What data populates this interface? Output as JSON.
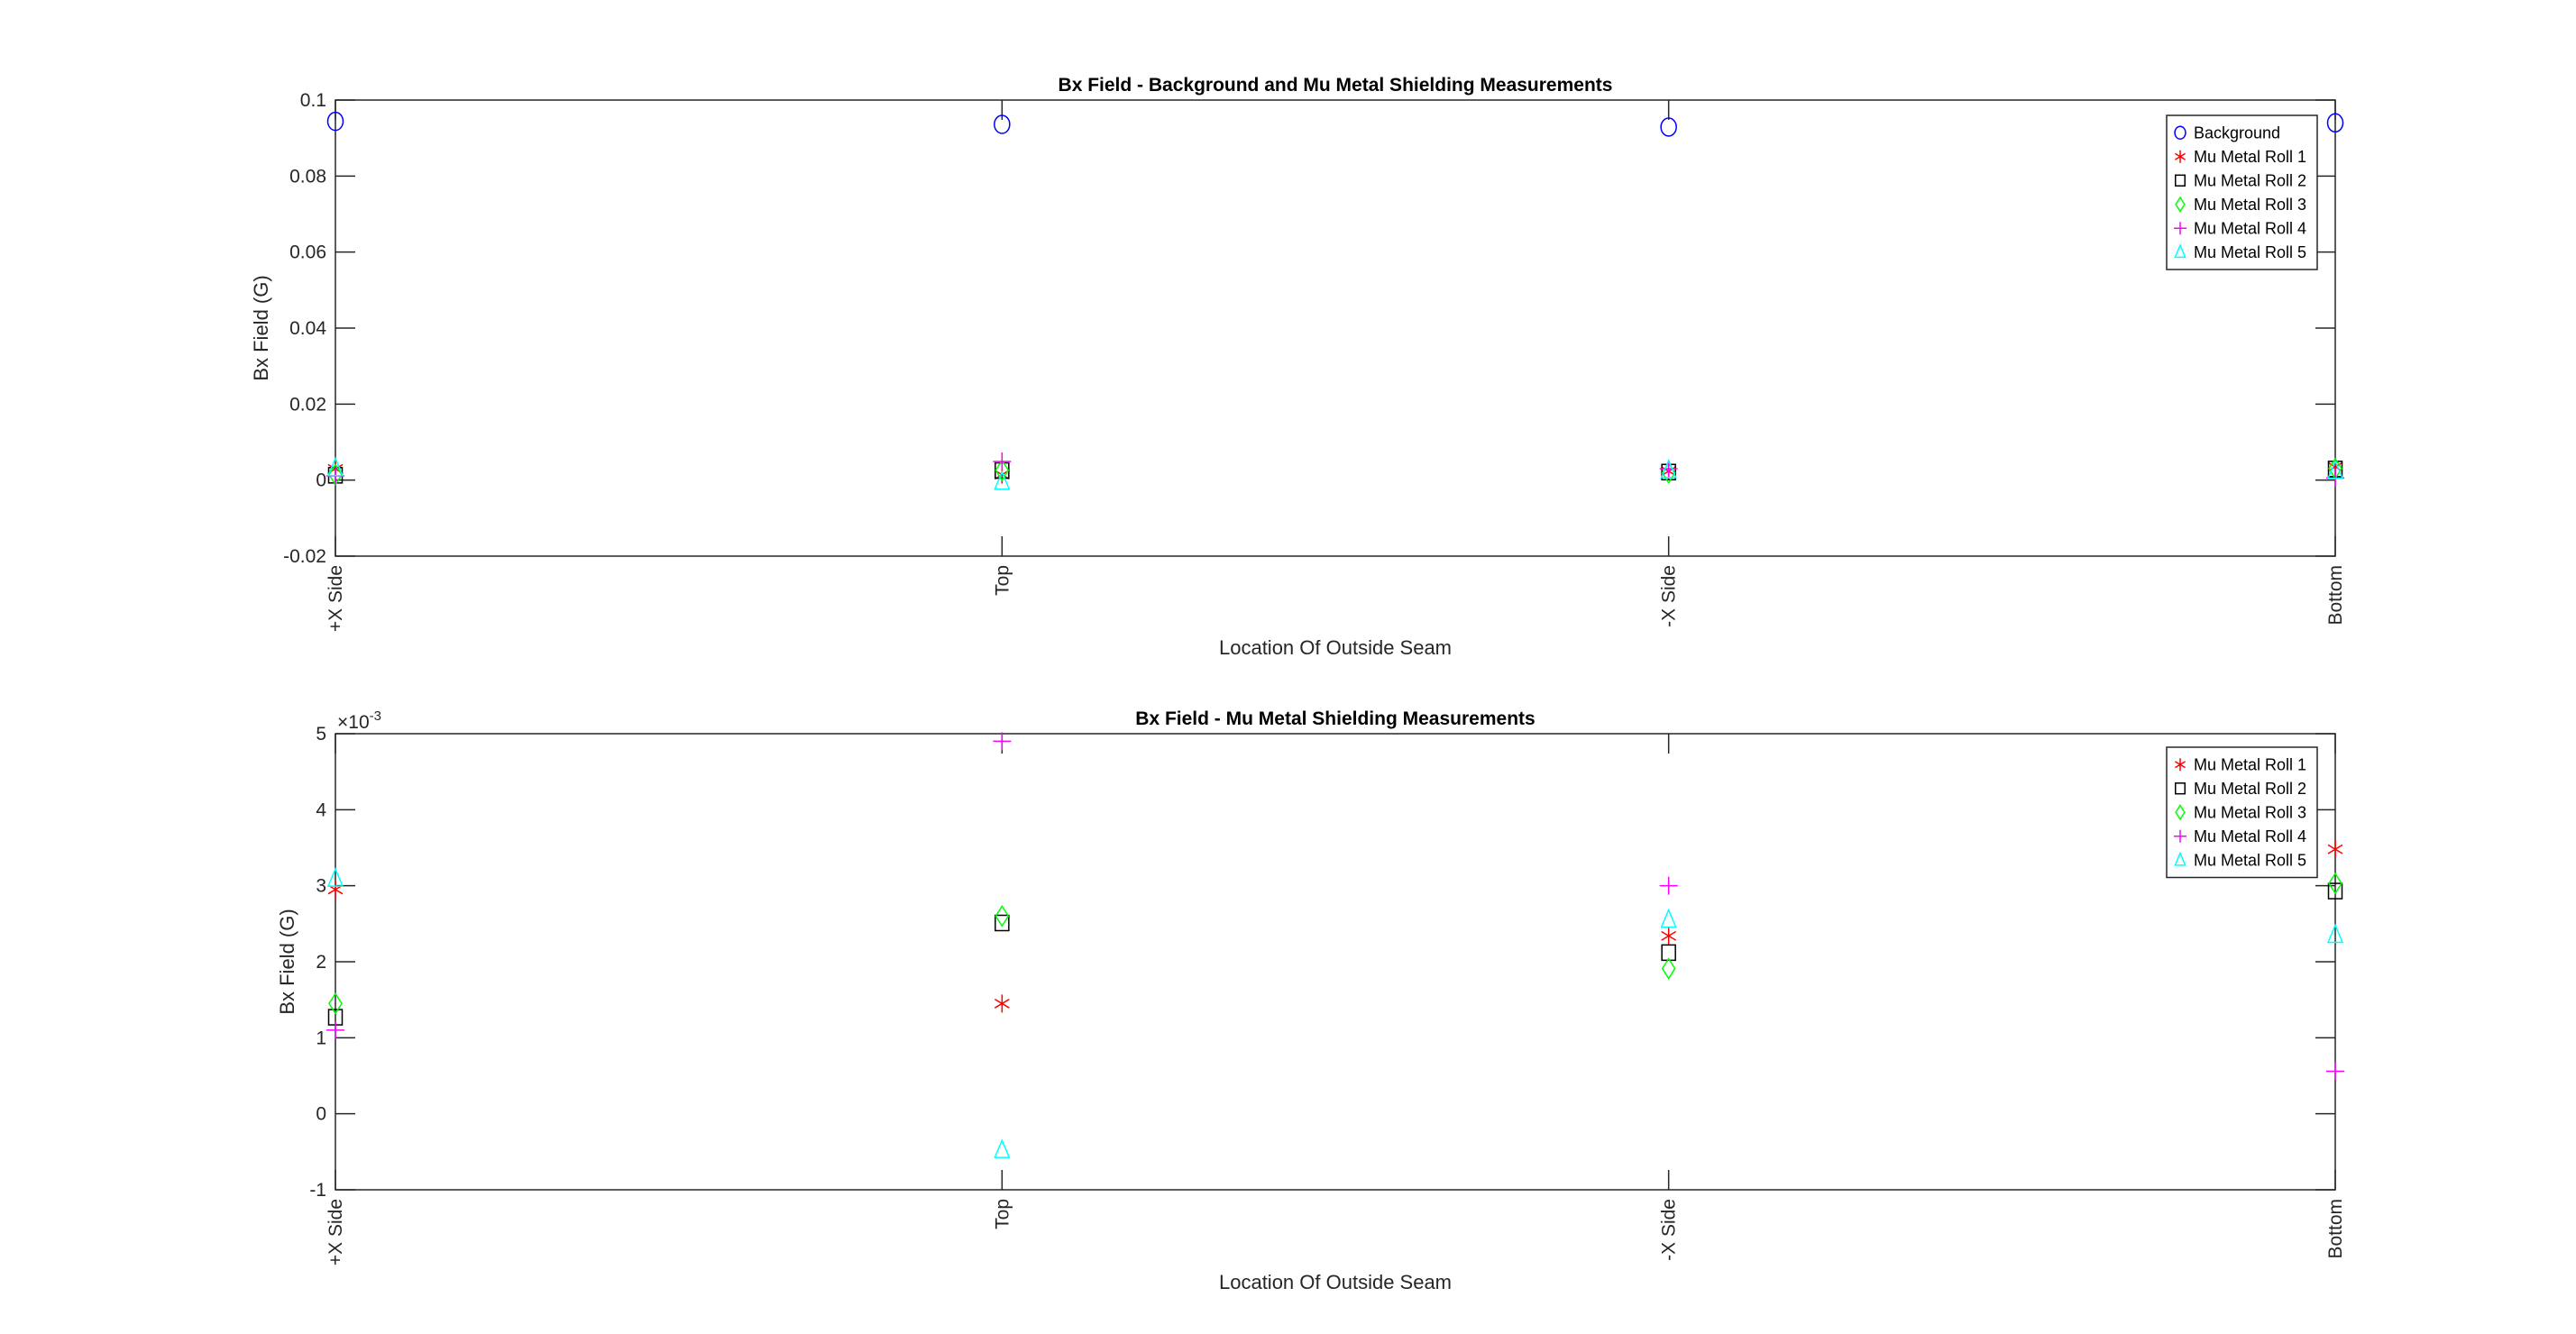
{
  "chart_data": [
    {
      "type": "scatter",
      "title": "Bx Field - Background and Mu Metal Shielding Measurements",
      "xlabel": "Location Of Outside Seam",
      "ylabel": "Bx Field (G)",
      "categories": [
        "+X Side",
        "Top",
        "-X Side",
        "Bottom"
      ],
      "ylim": [
        -0.02,
        0.1
      ],
      "yticks": [
        -0.02,
        0,
        0.02,
        0.04,
        0.06,
        0.08,
        0.1
      ],
      "ytick_labels": [
        "-0.02",
        "0",
        "0.02",
        "0.04",
        "0.06",
        "0.08",
        "0.1"
      ],
      "exponent_label": "",
      "grid": false,
      "legend_position": "top-right",
      "series": [
        {
          "name": "Background",
          "marker": "circle",
          "color": "#0000ff",
          "values": [
            0.0944,
            0.0936,
            0.0929,
            0.094
          ]
        },
        {
          "name": "Mu Metal Roll 1",
          "marker": "asterisk",
          "color": "#ff0000",
          "values": [
            0.00295,
            0.00145,
            0.00234,
            0.00348
          ]
        },
        {
          "name": "Mu Metal Roll 2",
          "marker": "square",
          "color": "#000000",
          "values": [
            0.00127,
            0.00251,
            0.00212,
            0.00293
          ]
        },
        {
          "name": "Mu Metal Roll 3",
          "marker": "diamond",
          "color": "#00ff00",
          "values": [
            0.00145,
            0.0026,
            0.00191,
            0.00303
          ]
        },
        {
          "name": "Mu Metal Roll 4",
          "marker": "plus",
          "color": "#ff00ff",
          "values": [
            0.0011,
            0.0049,
            0.003,
            0.00056
          ]
        },
        {
          "name": "Mu Metal Roll 5",
          "marker": "triangle",
          "color": "#00ffff",
          "values": [
            0.00309,
            -0.00048,
            0.00255,
            0.00235
          ]
        }
      ]
    },
    {
      "type": "scatter",
      "title": "Bx Field - Mu Metal Shielding Measurements",
      "xlabel": "Location Of Outside Seam",
      "ylabel": "Bx Field (G)",
      "categories": [
        "+X Side",
        "Top",
        "-X Side",
        "Bottom"
      ],
      "ylim": [
        -0.001,
        0.005
      ],
      "yticks": [
        -0.001,
        0,
        0.001,
        0.002,
        0.003,
        0.004,
        0.005
      ],
      "ytick_labels": [
        "-1",
        "0",
        "1",
        "2",
        "3",
        "4",
        "5"
      ],
      "exponent_label": "×10",
      "exponent_power": "-3",
      "grid": false,
      "legend_position": "top-right",
      "series": [
        {
          "name": "Mu Metal Roll 1",
          "marker": "asterisk",
          "color": "#ff0000",
          "values": [
            0.00295,
            0.00145,
            0.00234,
            0.00348
          ]
        },
        {
          "name": "Mu Metal Roll 2",
          "marker": "square",
          "color": "#000000",
          "values": [
            0.00127,
            0.00251,
            0.00212,
            0.00293
          ]
        },
        {
          "name": "Mu Metal Roll 3",
          "marker": "diamond",
          "color": "#00ff00",
          "values": [
            0.00145,
            0.0026,
            0.00191,
            0.00303
          ]
        },
        {
          "name": "Mu Metal Roll 4",
          "marker": "plus",
          "color": "#ff00ff",
          "values": [
            0.0011,
            0.0049,
            0.003,
            0.00056
          ]
        },
        {
          "name": "Mu Metal Roll 5",
          "marker": "triangle",
          "color": "#00ffff",
          "values": [
            0.00309,
            -0.00048,
            0.00255,
            0.00235
          ]
        }
      ]
    }
  ]
}
